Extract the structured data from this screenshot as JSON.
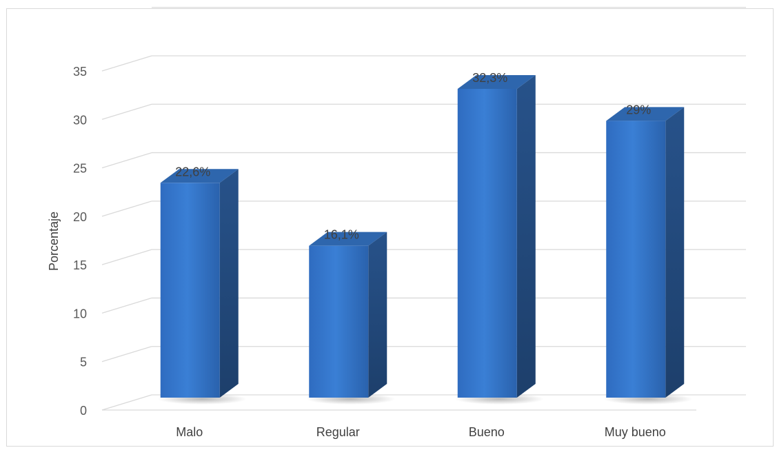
{
  "chart_data": {
    "type": "bar",
    "style": "3d-column",
    "categories": [
      "Malo",
      "Regular",
      "Bueno",
      "Muy bueno"
    ],
    "values": [
      22.6,
      16.1,
      32.3,
      29
    ],
    "data_labels": [
      "22,6%",
      "16,1%",
      "32,3%",
      "29%"
    ],
    "title": "",
    "xlabel": "",
    "ylabel": "Porcentaje",
    "ylim": [
      0,
      35
    ],
    "yticks": [
      0,
      5,
      10,
      15,
      20,
      25,
      30,
      35
    ],
    "grid": true,
    "legend": "none",
    "colors": {
      "bar_front": "#3a7fd5",
      "bar_side": "#22497a",
      "bar_top": "#2e66ad",
      "gridline": "#d9d9d9"
    }
  }
}
